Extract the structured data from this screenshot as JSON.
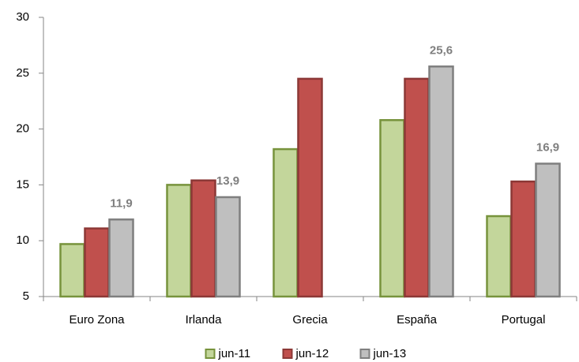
{
  "chart_data": {
    "type": "bar",
    "categories": [
      "Euro Zona",
      "Irlanda",
      "Grecia",
      "España",
      "Portugal"
    ],
    "series": [
      {
        "name": "jun-11",
        "color": "#c3d69b",
        "stroke": "#77933c",
        "values": [
          9.7,
          15.0,
          18.2,
          20.8,
          12.2
        ]
      },
      {
        "name": "jun-12",
        "color": "#c0504d",
        "stroke": "#8c3836",
        "values": [
          11.1,
          15.4,
          24.5,
          24.5,
          15.3
        ]
      },
      {
        "name": "jun-13",
        "color": "#bfbfbf",
        "stroke": "#7f7f7f",
        "values": [
          11.9,
          13.9,
          null,
          25.6,
          16.9
        ],
        "value_labels": [
          "11,9",
          "13,9",
          null,
          "25,6",
          "16,9"
        ]
      }
    ],
    "ylim": [
      5,
      30
    ],
    "yticks": [
      5,
      10,
      15,
      20,
      25,
      30
    ],
    "grid": false,
    "legend": "bottom"
  }
}
